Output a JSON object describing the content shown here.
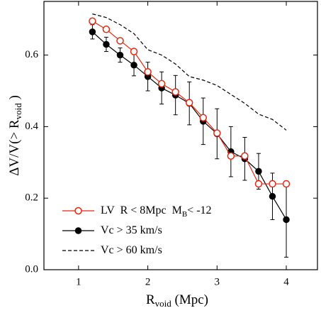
{
  "chart_data": {
    "type": "line",
    "xlabel": {
      "main": "R",
      "sub": "void",
      "rest": " (Mpc)"
    },
    "ylabel": {
      "main": "ΔV/V(> R",
      "sub": "void",
      "rest": " )"
    },
    "xlim": [
      0.5,
      4.45
    ],
    "ylim": [
      0,
      0.75
    ],
    "xticks": [
      1,
      2,
      3,
      4
    ],
    "yticks": [
      {
        "value": 0,
        "label": "0.0"
      },
      0.2,
      0.4,
      0.6
    ],
    "legend": "lower-left",
    "x": [
      1.2,
      1.4,
      1.6,
      1.8,
      2.0,
      2.2,
      2.4,
      2.6,
      2.8,
      3.0,
      3.2,
      3.4,
      3.6,
      3.8,
      4.0
    ],
    "series": [
      {
        "name": "LV  R < 8Mpc  M",
        "name_sub": "B",
        "name_rest": "< -12",
        "color": "#e8250f",
        "marker": "open-circle",
        "dash": false,
        "values": [
          0.695,
          0.672,
          0.64,
          0.61,
          0.553,
          0.52,
          0.497,
          0.467,
          0.425,
          0.382,
          0.318,
          0.318,
          0.24,
          0.24,
          0.24
        ]
      },
      {
        "name": "Vc > 35 km/s",
        "color": "#000000",
        "marker": "filled-circle",
        "dash": false,
        "values": [
          0.665,
          0.63,
          0.6,
          0.572,
          0.54,
          0.508,
          0.488,
          0.465,
          0.415,
          0.38,
          0.33,
          0.31,
          0.275,
          0.205,
          0.14
        ],
        "errors": [
          0.02,
          0.02,
          0.02,
          0.03,
          0.04,
          0.045,
          0.055,
          0.06,
          0.065,
          0.07,
          0.07,
          0.06,
          0.05,
          0.065,
          0.105
        ]
      },
      {
        "name": "Vc > 60 km/s",
        "color": "#000000",
        "marker": "none",
        "dash": true,
        "values": [
          0.715,
          0.705,
          0.685,
          0.66,
          0.615,
          0.6,
          0.575,
          0.54,
          0.53,
          0.515,
          0.49,
          0.465,
          0.435,
          0.42,
          0.39
        ]
      }
    ]
  }
}
